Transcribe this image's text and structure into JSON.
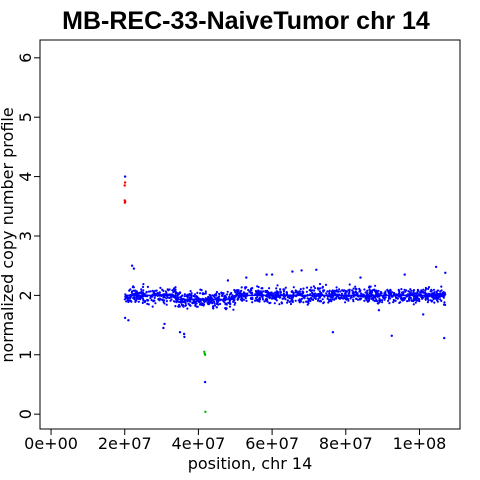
{
  "chart_data": {
    "type": "scatter",
    "title": "MB-REC-33-NaiveTumor chr 14",
    "xlabel": "position, chr 14",
    "ylabel": "normalized copy number profile",
    "xlim": [
      -3000000,
      111000000
    ],
    "ylim": [
      -0.25,
      6.3
    ],
    "x_ticks": [
      0,
      20000000,
      40000000,
      60000000,
      80000000,
      100000000
    ],
    "x_tick_labels": [
      "0e+00",
      "2e+07",
      "4e+07",
      "6e+07",
      "8e+07",
      "1e+08"
    ],
    "y_ticks": [
      0,
      1,
      2,
      3,
      4,
      5,
      6
    ],
    "y_tick_labels": [
      "0",
      "1",
      "2",
      "3",
      "4",
      "5",
      "6"
    ],
    "grid": false,
    "colors": {
      "normal": "#0000ff",
      "gain": "#ff0000",
      "loss": "#00bb00",
      "segment": "#0000ff",
      "axis": "#000000"
    },
    "series": [
      {
        "category": "normal",
        "color": "#0000ff",
        "x_range": [
          20000000,
          107000000
        ],
        "level": 2.0,
        "spread": 0.13,
        "points": [
          [
            20100000,
            4.0
          ],
          [
            41800000,
            0.54
          ],
          [
            20100000,
            1.62
          ],
          [
            21000000,
            1.58
          ],
          [
            22000000,
            2.5
          ],
          [
            22500000,
            2.45
          ],
          [
            30500000,
            1.45
          ],
          [
            30800000,
            1.52
          ],
          [
            35000000,
            1.38
          ],
          [
            36100000,
            1.35
          ],
          [
            36200000,
            1.3
          ],
          [
            44000000,
            1.78
          ],
          [
            45000000,
            1.8
          ],
          [
            48000000,
            2.25
          ],
          [
            53000000,
            2.3
          ],
          [
            58500000,
            2.35
          ],
          [
            60000000,
            2.35
          ],
          [
            65500000,
            2.4
          ],
          [
            68000000,
            2.42
          ],
          [
            72000000,
            2.43
          ],
          [
            73000000,
            1.9
          ],
          [
            76500000,
            1.38
          ],
          [
            84000000,
            2.3
          ],
          [
            89000000,
            1.75
          ],
          [
            92500000,
            1.32
          ],
          [
            96000000,
            2.35
          ],
          [
            101000000,
            1.68
          ],
          [
            104500000,
            2.48
          ],
          [
            106700000,
            1.28
          ],
          [
            107000000,
            2.38
          ]
        ]
      },
      {
        "category": "gain",
        "color": "#ff0000",
        "points": [
          [
            20000000,
            3.85
          ],
          [
            20100000,
            3.9
          ],
          [
            20050000,
            3.56
          ],
          [
            20120000,
            3.58
          ],
          [
            20000000,
            3.6
          ]
        ]
      },
      {
        "category": "loss",
        "color": "#00bb00",
        "points": [
          [
            41600000,
            1.05
          ],
          [
            41800000,
            1.0
          ],
          [
            41700000,
            1.02
          ],
          [
            41900000,
            0.04
          ]
        ]
      }
    ],
    "segments": [
      {
        "x0": 20000000,
        "x1": 34000000,
        "y": 2.0
      },
      {
        "x0": 34000000,
        "x1": 50000000,
        "y": 1.93
      },
      {
        "x0": 50000000,
        "x1": 107000000,
        "y": 2.0
      }
    ]
  }
}
